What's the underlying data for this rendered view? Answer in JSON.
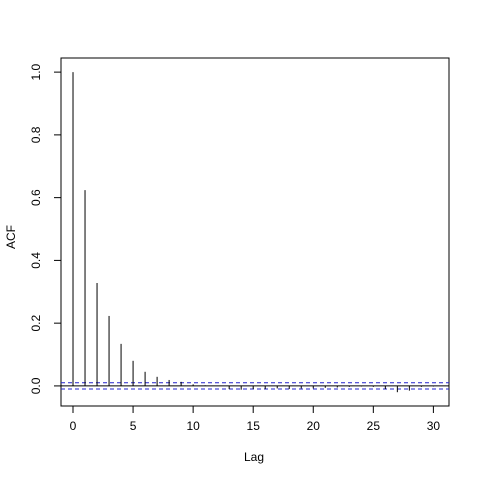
{
  "chart_data": {
    "type": "acf",
    "xlabel": "Lag",
    "ylabel": "ACF",
    "x": [
      0,
      1,
      2,
      3,
      4,
      5,
      6,
      7,
      8,
      9,
      10,
      11,
      12,
      13,
      14,
      15,
      16,
      17,
      18,
      19,
      20,
      21,
      22,
      23,
      24,
      25,
      26,
      27,
      28,
      29,
      30
    ],
    "values": [
      1.0,
      0.624,
      0.328,
      0.223,
      0.134,
      0.08,
      0.045,
      0.029,
      0.019,
      0.013,
      0.005,
      0.002,
      0.0,
      -0.01,
      -0.012,
      -0.01,
      -0.01,
      -0.008,
      -0.01,
      -0.008,
      -0.008,
      -0.006,
      -0.005,
      -0.003,
      -0.002,
      -0.003,
      -0.01,
      -0.02,
      -0.015,
      -0.003,
      -0.002
    ],
    "conf_limit": 0.01,
    "color": "#000000",
    "conf_color": "#2222cc",
    "xlim": [
      -1,
      31.3
    ],
    "xticks": [
      0,
      5,
      10,
      15,
      20,
      25,
      30
    ],
    "ylim": [
      -0.064,
      1.045
    ],
    "yticks": [
      {
        "value": 0,
        "label": "0.0"
      },
      0.2,
      0.4,
      0.6,
      0.8,
      {
        "value": 1,
        "label": "1.0"
      }
    ]
  }
}
